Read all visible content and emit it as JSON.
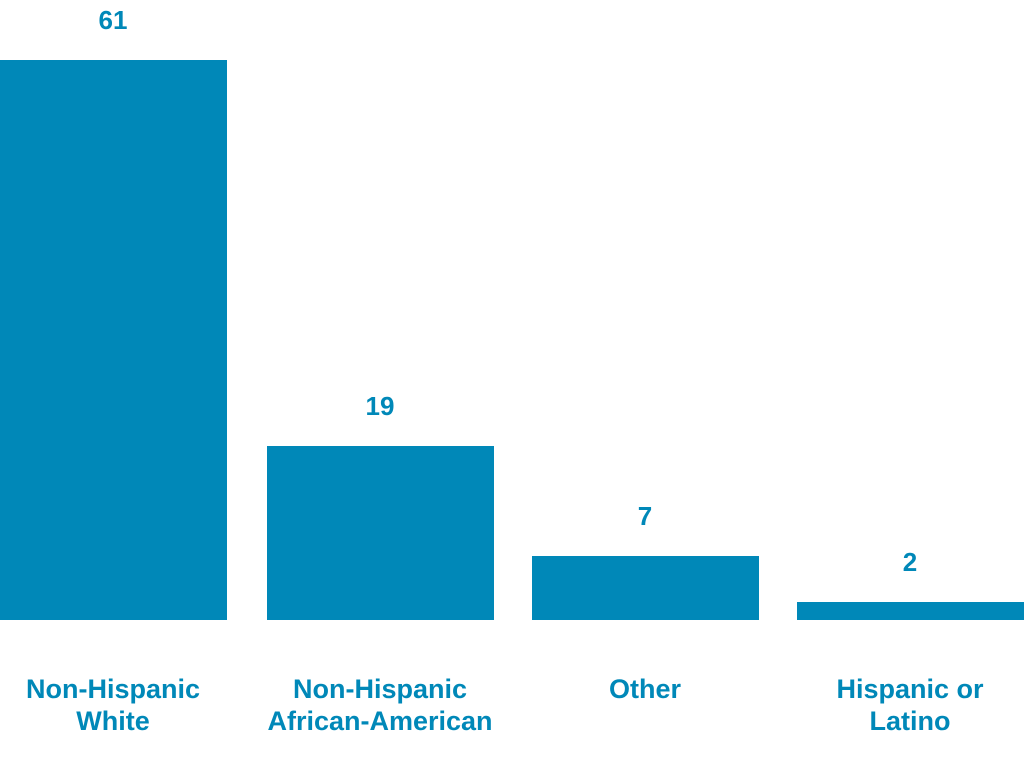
{
  "chart_data": {
    "type": "bar",
    "categories": [
      "Non-Hispanic White",
      "Non-Hispanic African-American",
      "Other",
      "Hispanic or Latino"
    ],
    "values": [
      61,
      19,
      7,
      2
    ],
    "color": "#0088b8"
  }
}
